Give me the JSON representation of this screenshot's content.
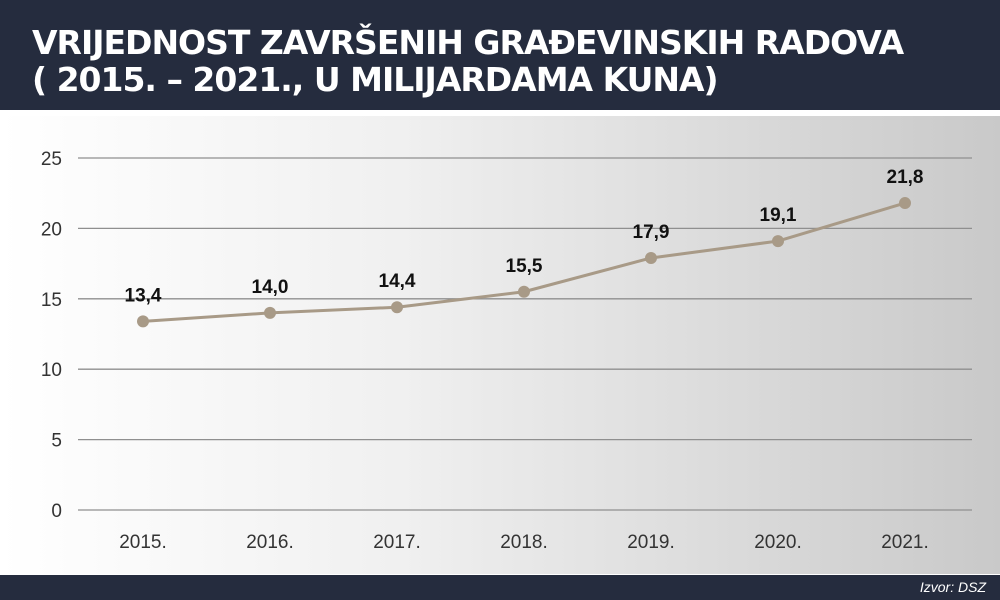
{
  "header": {
    "title_line1": "VRIJEDNOST ZAVRŠENIH GRAĐEVINSKIH RADOVA",
    "title_line2": "( 2015. – 2021., U MILIJARDAMA KUNA)"
  },
  "footer": {
    "source": "Izvor: DSZ"
  },
  "colors": {
    "header_bg": "#252c3e",
    "line": "#a89a87",
    "grid": "#8f8f8f"
  },
  "chart_data": {
    "type": "line",
    "title": "VRIJEDNOST ZAVRŠENIH GRAĐEVINSKIH RADOVA ( 2015. – 2021., U MILIJARDAMA KUNA)",
    "categories": [
      "2015.",
      "2016.",
      "2017.",
      "2018.",
      "2019.",
      "2020.",
      "2021."
    ],
    "values": [
      13.4,
      14.0,
      14.4,
      15.5,
      17.9,
      19.1,
      21.8
    ],
    "data_labels": [
      "13,4",
      "14,0",
      "14,4",
      "15,5",
      "17,9",
      "19,1",
      "21,8"
    ],
    "yticks": [
      0,
      5,
      10,
      15,
      20,
      25
    ],
    "ylim": [
      0,
      25
    ],
    "xlabel": "",
    "ylabel": "",
    "grid": true,
    "legend": "none"
  }
}
